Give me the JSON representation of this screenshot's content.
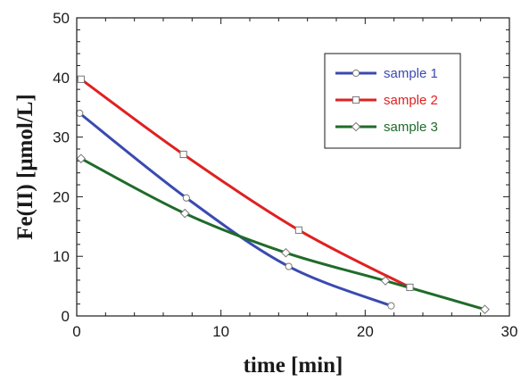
{
  "chart_data": {
    "type": "line",
    "title": "",
    "xlabel": "time  [min]",
    "ylabel": "Fe(II)   [μmol/L]",
    "xlim": [
      0,
      30
    ],
    "ylim": [
      0,
      50
    ],
    "xticks": [
      "0",
      "10",
      "20",
      "30"
    ],
    "yticks": [
      "0",
      "10",
      "20",
      "30",
      "40",
      "50"
    ],
    "grid": false,
    "legend_position": "top-right",
    "series": [
      {
        "name": "sample 1",
        "color": "#3a4ab0",
        "marker": "circle",
        "x": [
          0.2,
          7.6,
          14.7,
          21.8
        ],
        "y": [
          34.0,
          19.8,
          8.3,
          1.7
        ]
      },
      {
        "name": "sample 2",
        "color": "#e02020",
        "marker": "square",
        "x": [
          0.3,
          7.4,
          15.4,
          23.1
        ],
        "y": [
          39.7,
          27.1,
          14.4,
          4.8
        ]
      },
      {
        "name": "sample 3",
        "color": "#1f6b2a",
        "marker": "diamond",
        "x": [
          0.3,
          7.5,
          14.5,
          21.4,
          28.3
        ],
        "y": [
          26.4,
          17.2,
          10.6,
          5.9,
          1.1
        ]
      }
    ]
  }
}
